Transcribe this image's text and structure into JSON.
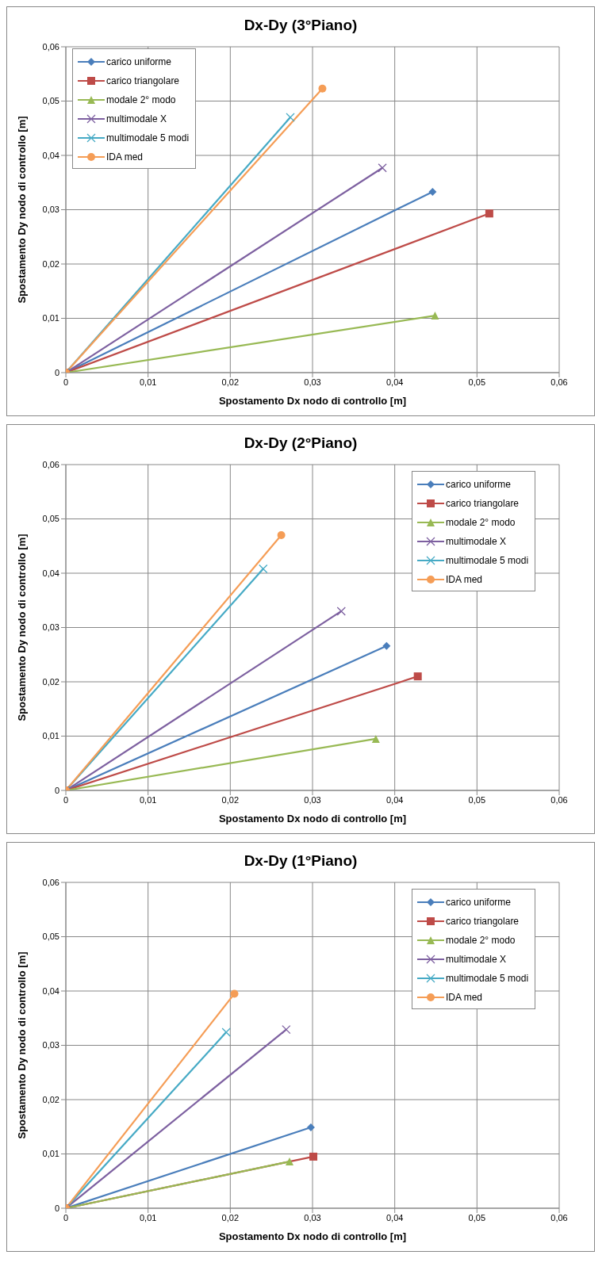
{
  "chart_data": [
    {
      "type": "line",
      "title": "Dx-Dy (3°Piano)",
      "xlabel": "Spostamento Dx nodo di controllo [m]",
      "ylabel": "Spostamento Dy nodo di controllo [m]",
      "xlim": [
        0,
        0.06
      ],
      "ylim": [
        0,
        0.06
      ],
      "xticks": [
        {
          "value": 0,
          "label": "0"
        },
        {
          "value": 0.01,
          "label": "0,01"
        },
        {
          "value": 0.02,
          "label": "0,02"
        },
        {
          "value": 0.03,
          "label": "0,03"
        },
        {
          "value": 0.04,
          "label": "0,04"
        },
        {
          "value": 0.05,
          "label": "0,05"
        },
        {
          "value": 0.06,
          "label": "0,06"
        }
      ],
      "yticks": [
        {
          "value": 0,
          "label": "0"
        },
        {
          "value": 0.01,
          "label": "0,01"
        },
        {
          "value": 0.02,
          "label": "0,02"
        },
        {
          "value": 0.03,
          "label": "0,03"
        },
        {
          "value": 0.04,
          "label": "0,04"
        },
        {
          "value": 0.05,
          "label": "0,05"
        },
        {
          "value": 0.06,
          "label": "0,06"
        }
      ],
      "grid": true,
      "legend": "top left",
      "series": [
        {
          "name": "carico uniforme",
          "color": "#4a7ebb",
          "marker": "diamond",
          "x": [
            0,
            0.0446
          ],
          "values": [
            0,
            0.0333
          ]
        },
        {
          "name": "carico triangolare",
          "color": "#be4b48",
          "marker": "square",
          "x": [
            0,
            0.0515
          ],
          "values": [
            0,
            0.0293
          ]
        },
        {
          "name": "modale 2° modo",
          "color": "#98b954",
          "marker": "triangle",
          "x": [
            0,
            0.0449
          ],
          "values": [
            0,
            0.0105
          ]
        },
        {
          "name": "multimodale X",
          "color": "#7d60a0",
          "marker": "cross",
          "x": [
            0,
            0.0385
          ],
          "values": [
            0,
            0.0377
          ]
        },
        {
          "name": "multimodale 5 modi",
          "color": "#46aac5",
          "marker": "cross",
          "x": [
            0,
            0.0273
          ],
          "values": [
            0,
            0.047
          ]
        },
        {
          "name": "IDA med",
          "color": "#f59d56",
          "marker": "circle",
          "x": [
            0,
            0.0312
          ],
          "values": [
            0,
            0.0523
          ]
        }
      ]
    },
    {
      "type": "line",
      "title": "Dx-Dy (2°Piano)",
      "xlabel": "Spostamento Dx nodo di controllo [m]",
      "ylabel": "Spostamento Dy nodo di controllo [m]",
      "xlim": [
        0,
        0.06
      ],
      "ylim": [
        0,
        0.06
      ],
      "xticks": [
        {
          "value": 0,
          "label": "0"
        },
        {
          "value": 0.01,
          "label": "0,01"
        },
        {
          "value": 0.02,
          "label": "0,02"
        },
        {
          "value": 0.03,
          "label": "0,03"
        },
        {
          "value": 0.04,
          "label": "0,04"
        },
        {
          "value": 0.05,
          "label": "0,05"
        },
        {
          "value": 0.06,
          "label": "0,06"
        }
      ],
      "yticks": [
        {
          "value": 0,
          "label": "0"
        },
        {
          "value": 0.01,
          "label": "0,01"
        },
        {
          "value": 0.02,
          "label": "0,02"
        },
        {
          "value": 0.03,
          "label": "0,03"
        },
        {
          "value": 0.04,
          "label": "0,04"
        },
        {
          "value": 0.05,
          "label": "0,05"
        },
        {
          "value": 0.06,
          "label": "0,06"
        }
      ],
      "grid": true,
      "legend": "top right",
      "series": [
        {
          "name": "carico uniforme",
          "color": "#4a7ebb",
          "marker": "diamond",
          "x": [
            0,
            0.039
          ],
          "values": [
            0,
            0.0266
          ]
        },
        {
          "name": "carico triangolare",
          "color": "#be4b48",
          "marker": "square",
          "x": [
            0,
            0.0428
          ],
          "values": [
            0,
            0.021
          ]
        },
        {
          "name": "modale 2° modo",
          "color": "#98b954",
          "marker": "triangle",
          "x": [
            0,
            0.0377
          ],
          "values": [
            0,
            0.0095
          ]
        },
        {
          "name": "multimodale X",
          "color": "#7d60a0",
          "marker": "cross",
          "x": [
            0,
            0.0335
          ],
          "values": [
            0,
            0.033
          ]
        },
        {
          "name": "multimodale 5 modi",
          "color": "#46aac5",
          "marker": "cross",
          "x": [
            0,
            0.024
          ],
          "values": [
            0,
            0.0408
          ]
        },
        {
          "name": "IDA med",
          "color": "#f59d56",
          "marker": "circle",
          "x": [
            0,
            0.0262
          ],
          "values": [
            0,
            0.047
          ]
        }
      ]
    },
    {
      "type": "line",
      "title": "Dx-Dy (1°Piano)",
      "xlabel": "Spostamento Dx nodo di controllo [m]",
      "ylabel": "Spostamento Dy nodo di controllo [m]",
      "xlim": [
        0,
        0.06
      ],
      "ylim": [
        0,
        0.06
      ],
      "xticks": [
        {
          "value": 0,
          "label": "0"
        },
        {
          "value": 0.01,
          "label": "0,01"
        },
        {
          "value": 0.02,
          "label": "0,02"
        },
        {
          "value": 0.03,
          "label": "0,03"
        },
        {
          "value": 0.04,
          "label": "0,04"
        },
        {
          "value": 0.05,
          "label": "0,05"
        },
        {
          "value": 0.06,
          "label": "0,06"
        }
      ],
      "yticks": [
        {
          "value": 0,
          "label": "0"
        },
        {
          "value": 0.01,
          "label": "0,01"
        },
        {
          "value": 0.02,
          "label": "0,02"
        },
        {
          "value": 0.03,
          "label": "0,03"
        },
        {
          "value": 0.04,
          "label": "0,04"
        },
        {
          "value": 0.05,
          "label": "0,05"
        },
        {
          "value": 0.06,
          "label": "0,06"
        }
      ],
      "grid": true,
      "legend": "top right",
      "series": [
        {
          "name": "carico uniforme",
          "color": "#4a7ebb",
          "marker": "diamond",
          "x": [
            0,
            0.0298
          ],
          "values": [
            0,
            0.0149
          ]
        },
        {
          "name": "carico triangolare",
          "color": "#be4b48",
          "marker": "square",
          "x": [
            0,
            0.0301
          ],
          "values": [
            0,
            0.0095
          ]
        },
        {
          "name": "modale 2° modo",
          "color": "#98b954",
          "marker": "triangle",
          "x": [
            0,
            0.0272
          ],
          "values": [
            0,
            0.0086
          ]
        },
        {
          "name": "multimodale X",
          "color": "#7d60a0",
          "marker": "cross",
          "x": [
            0,
            0.0268
          ],
          "values": [
            0,
            0.0329
          ]
        },
        {
          "name": "multimodale 5 modi",
          "color": "#46aac5",
          "marker": "cross",
          "x": [
            0,
            0.0195
          ],
          "values": [
            0,
            0.0324
          ]
        },
        {
          "name": "IDA med",
          "color": "#f59d56",
          "marker": "circle",
          "x": [
            0,
            0.0205
          ],
          "values": [
            0,
            0.0395
          ]
        }
      ]
    }
  ]
}
